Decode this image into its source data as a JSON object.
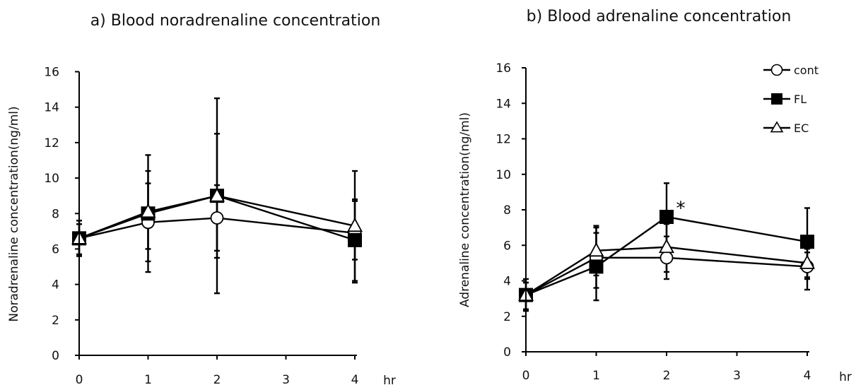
{
  "chart_data": [
    {
      "type": "line",
      "title": "a) Blood noradrenaline concentration",
      "ylabel": "Noradrenaline concentration(ng/ml)",
      "xlabel": "hr",
      "x_ticks": [
        0,
        1,
        2,
        3,
        4
      ],
      "ylim": [
        0,
        16
      ],
      "y_ticks": [
        0,
        2,
        4,
        6,
        8,
        10,
        12,
        14,
        16
      ],
      "x": [
        0,
        1,
        2,
        4
      ],
      "series": [
        {
          "name": "cont",
          "marker": "circle-open",
          "values": [
            6.6,
            7.5,
            7.75,
            6.9
          ],
          "err_low": [
            5.7,
            6.0,
            5.9,
            5.4
          ],
          "err_high": [
            7.4,
            9.7,
            9.6,
            8.7
          ]
        },
        {
          "name": "FL",
          "marker": "square-filled",
          "values": [
            6.6,
            8.0,
            9.0,
            6.5
          ],
          "err_low": [
            5.6,
            4.7,
            3.5,
            4.1
          ],
          "err_high": [
            7.6,
            11.3,
            14.5,
            8.8
          ]
        },
        {
          "name": "EC",
          "marker": "triangle-open",
          "values": [
            6.6,
            8.1,
            9.0,
            7.3
          ],
          "err_low": [
            5.6,
            5.3,
            5.5,
            4.2
          ],
          "err_high": [
            7.6,
            10.4,
            12.5,
            10.4
          ]
        }
      ],
      "annotations": []
    },
    {
      "type": "line",
      "title": "b) Blood adrenaline concentration",
      "ylabel": "Adrenaline concentration(ng/ml)",
      "xlabel": "hr",
      "x_ticks": [
        0,
        1,
        2,
        3,
        4
      ],
      "ylim": [
        0,
        16
      ],
      "y_ticks": [
        0,
        2,
        4,
        6,
        8,
        10,
        12,
        14,
        16
      ],
      "x": [
        0,
        1,
        2,
        4
      ],
      "legend": {
        "placement": "top-right",
        "entries": [
          "cont",
          "FL",
          "EC"
        ]
      },
      "series": [
        {
          "name": "cont",
          "marker": "circle-open",
          "values": [
            3.2,
            5.3,
            5.3,
            4.8
          ],
          "err_low": [
            2.4,
            3.6,
            4.1,
            4.1
          ],
          "err_high": [
            3.9,
            7.0,
            6.5,
            5.6
          ]
        },
        {
          "name": "FL",
          "marker": "square-filled",
          "values": [
            3.2,
            4.8,
            7.6,
            6.2
          ],
          "err_low": [
            2.3,
            2.9,
            5.7,
            3.5
          ],
          "err_high": [
            4.1,
            6.7,
            9.5,
            8.1
          ]
        },
        {
          "name": "EC",
          "marker": "triangle-open",
          "values": [
            3.2,
            5.7,
            5.9,
            5.0
          ],
          "err_low": [
            2.4,
            4.3,
            4.5,
            4.2
          ],
          "err_high": [
            3.9,
            7.1,
            7.2,
            5.8
          ]
        }
      ],
      "annotations": [
        {
          "text": "*",
          "x": 2,
          "y": 8.1
        }
      ]
    }
  ]
}
